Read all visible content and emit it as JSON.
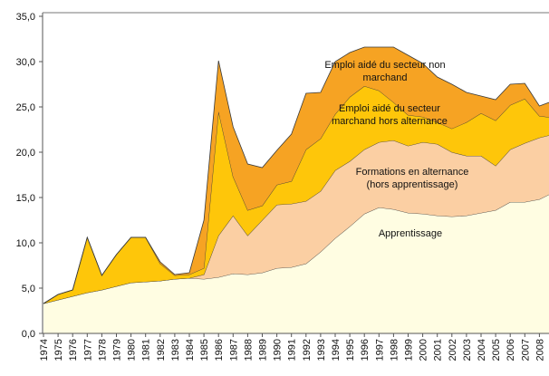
{
  "chart_data": {
    "type": "stacked-area",
    "categories": [
      "1974",
      "1975",
      "1976",
      "1977",
      "1978",
      "1979",
      "1980",
      "1981",
      "1982",
      "1983",
      "1984",
      "1985",
      "1986",
      "1987",
      "1988",
      "1989",
      "1990",
      "1991",
      "1992",
      "1993",
      "1994",
      "1995",
      "1996",
      "1997",
      "1998",
      "1999",
      "2000",
      "2001",
      "2002",
      "2003",
      "2004",
      "2005",
      "2006",
      "2007",
      "2008",
      "2009"
    ],
    "ylim": [
      0,
      35
    ],
    "yticks": [
      {
        "value": 0,
        "label": "0,0"
      },
      {
        "value": 5,
        "label": "5,0"
      },
      {
        "value": 10,
        "label": "10,0"
      },
      {
        "value": 15,
        "label": "15,0"
      },
      {
        "value": 20,
        "label": "20,0"
      },
      {
        "value": 25,
        "label": "25,0"
      },
      {
        "value": 30,
        "label": "30,0"
      },
      {
        "value": 35,
        "label": "35,0"
      }
    ],
    "series": [
      {
        "label": [
          "Apprentissage"
        ],
        "color": "#FFFDE2",
        "values": [
          3.3,
          3.7,
          4.1,
          4.5,
          4.8,
          5.2,
          5.6,
          5.7,
          5.8,
          6.0,
          6.1,
          6.0,
          6.2,
          6.6,
          6.5,
          6.7,
          7.2,
          7.3,
          7.7,
          9.0,
          10.5,
          11.8,
          13.2,
          13.9,
          13.7,
          13.3,
          13.2,
          13.0,
          12.9,
          13.0,
          13.3,
          13.6,
          14.5,
          14.5,
          14.8,
          15.6
        ]
      },
      {
        "label": [
          "Formations en alternance",
          "(hors apprentissage)"
        ],
        "color": "#FBCFA3",
        "values": [
          0,
          0,
          0,
          0,
          0,
          0,
          0,
          0,
          0,
          0,
          0,
          0.5,
          4.6,
          6.4,
          4.3,
          5.8,
          7.0,
          7.0,
          6.9,
          6.7,
          7.5,
          7.2,
          7.1,
          7.2,
          7.6,
          7.4,
          7.9,
          7.9,
          7.1,
          6.6,
          6.3,
          4.9,
          5.8,
          6.5,
          6.8,
          6.4
        ]
      },
      {
        "label": [
          "Emploi aidé du secteur",
          "marchand hors alternance"
        ],
        "color": "#FEC60A",
        "values": [
          0,
          0.6,
          0.7,
          6.1,
          1.6,
          3.5,
          5.0,
          4.9,
          1.9,
          0.4,
          0.4,
          0.7,
          13.7,
          4.3,
          2.8,
          1.6,
          2.2,
          2.5,
          5.7,
          5.8,
          6.2,
          7.1,
          7.0,
          5.7,
          4.2,
          3.4,
          2.8,
          2.4,
          2.6,
          3.7,
          4.7,
          5.0,
          4.9,
          4.9,
          2.4,
          1.8
        ]
      },
      {
        "label": [
          "Emploi aidé du secteur non",
          "marchand"
        ],
        "color": "#F6A323",
        "values": [
          0,
          0,
          0,
          0,
          0,
          0,
          0,
          0,
          0.2,
          0.1,
          0.2,
          5.3,
          5.6,
          5.5,
          5.1,
          4.2,
          3.8,
          5.2,
          6.2,
          5.1,
          5.8,
          4.9,
          4.3,
          4.8,
          6.1,
          6.6,
          5.9,
          5.0,
          4.9,
          3.3,
          1.9,
          2.3,
          2.3,
          1.7,
          1.1,
          1.9
        ]
      }
    ]
  }
}
